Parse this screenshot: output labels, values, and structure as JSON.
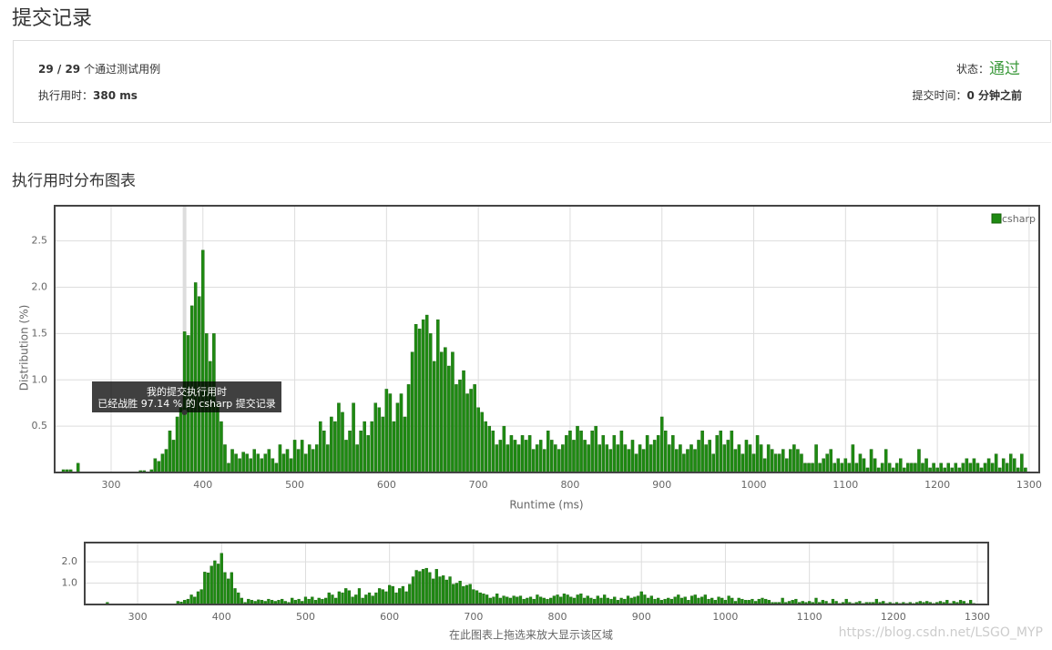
{
  "header": {
    "title": "提交记录",
    "passed": "29 / 29",
    "passed_label": "个通过测试用例",
    "runtime_label": "执行用时：",
    "runtime": "380 ms",
    "status_label": "状态：",
    "status": "通过",
    "time_label": "提交时间：",
    "time": "0 分钟之前"
  },
  "section_title": "执行用时分布图表",
  "chart_data": {
    "type": "bar",
    "x_label": "Runtime (ms)",
    "y_label": "Distribution (%)",
    "legend": "top-right",
    "grid": true,
    "series": [
      {
        "name": "csharp",
        "color": "#1e8a12",
        "x": [
          248,
          252,
          256,
          260,
          264,
          268,
          272,
          276,
          280,
          284,
          288,
          292,
          296,
          300,
          304,
          308,
          312,
          316,
          320,
          324,
          328,
          332,
          336,
          340,
          344,
          348,
          352,
          356,
          360,
          364,
          368,
          372,
          376,
          380,
          384,
          388,
          392,
          396,
          400,
          404,
          408,
          412,
          416,
          420,
          424,
          428,
          432,
          436,
          440,
          444,
          448,
          452,
          456,
          460,
          464,
          468,
          472,
          476,
          480,
          484,
          488,
          492,
          496,
          500,
          504,
          508,
          512,
          516,
          520,
          524,
          528,
          532,
          536,
          540,
          544,
          548,
          552,
          556,
          560,
          564,
          568,
          572,
          576,
          580,
          584,
          588,
          592,
          596,
          600,
          604,
          608,
          612,
          616,
          620,
          624,
          628,
          632,
          636,
          640,
          644,
          648,
          652,
          656,
          660,
          664,
          668,
          672,
          676,
          680,
          684,
          688,
          692,
          696,
          700,
          704,
          708,
          712,
          716,
          720,
          724,
          728,
          732,
          736,
          740,
          744,
          748,
          752,
          756,
          760,
          764,
          768,
          772,
          776,
          780,
          784,
          788,
          792,
          796,
          800,
          804,
          808,
          812,
          816,
          820,
          824,
          828,
          832,
          836,
          840,
          844,
          848,
          852,
          856,
          860,
          864,
          868,
          872,
          876,
          880,
          884,
          888,
          892,
          896,
          900,
          904,
          908,
          912,
          916,
          920,
          924,
          928,
          932,
          936,
          940,
          944,
          948,
          952,
          956,
          960,
          964,
          968,
          972,
          976,
          980,
          984,
          988,
          992,
          996,
          1000,
          1004,
          1008,
          1012,
          1016,
          1020,
          1024,
          1028,
          1032,
          1036,
          1040,
          1044,
          1048,
          1052,
          1056,
          1060,
          1064,
          1068,
          1072,
          1076,
          1080,
          1084,
          1088,
          1092,
          1096,
          1100,
          1104,
          1108,
          1112,
          1116,
          1120,
          1124,
          1128,
          1132,
          1136,
          1140,
          1144,
          1148,
          1152,
          1156,
          1160,
          1164,
          1168,
          1172,
          1176,
          1180,
          1184,
          1188,
          1192,
          1196,
          1200,
          1204,
          1208,
          1212,
          1216,
          1220,
          1224,
          1228,
          1232,
          1236,
          1240,
          1244,
          1248,
          1252,
          1256,
          1260,
          1264,
          1268,
          1272,
          1276,
          1280,
          1284,
          1288,
          1292,
          1296
        ],
        "values": [
          0.03,
          0.03,
          0.03,
          0,
          0.1,
          0,
          0,
          0,
          0,
          0,
          0,
          0,
          0,
          0,
          0,
          0,
          0,
          0,
          0,
          0,
          0,
          0.02,
          0.02,
          0,
          0.03,
          0.15,
          0.12,
          0.2,
          0.25,
          0.45,
          0.35,
          0.6,
          0.7,
          1.52,
          1.48,
          1.8,
          2.05,
          1.9,
          2.4,
          1.5,
          1.2,
          1.5,
          0.75,
          0.55,
          0.3,
          0.1,
          0.25,
          0.2,
          0.15,
          0.22,
          0.2,
          0.15,
          0.25,
          0.2,
          0.15,
          0.2,
          0.25,
          0.15,
          0.1,
          0.3,
          0.2,
          0.25,
          0.15,
          0.35,
          0.25,
          0.35,
          0.2,
          0.3,
          0.25,
          0.3,
          0.55,
          0.45,
          0.3,
          0.6,
          0.55,
          0.75,
          0.65,
          0.35,
          0.45,
          0.75,
          0.3,
          0.45,
          0.55,
          0.4,
          0.55,
          0.75,
          0.7,
          0.6,
          0.9,
          0.85,
          0.55,
          0.75,
          0.85,
          0.6,
          0.95,
          1.3,
          1.6,
          1.55,
          1.65,
          1.7,
          1.5,
          1.2,
          1.65,
          1.3,
          1.35,
          1.15,
          1.3,
          0.95,
          1.0,
          1.1,
          0.85,
          0.9,
          0.95,
          0.7,
          0.65,
          0.55,
          0.5,
          0.45,
          0.3,
          0.35,
          0.5,
          0.3,
          0.4,
          0.35,
          0.3,
          0.4,
          0.35,
          0.4,
          0.25,
          0.3,
          0.35,
          0.25,
          0.45,
          0.35,
          0.3,
          0.25,
          0.3,
          0.4,
          0.45,
          0.35,
          0.5,
          0.45,
          0.35,
          0.3,
          0.45,
          0.5,
          0.3,
          0.4,
          0.3,
          0.25,
          0.4,
          0.3,
          0.45,
          0.3,
          0.25,
          0.35,
          0.2,
          0.3,
          0.25,
          0.4,
          0.3,
          0.35,
          0.4,
          0.6,
          0.45,
          0.3,
          0.4,
          0.25,
          0.3,
          0.2,
          0.25,
          0.3,
          0.25,
          0.35,
          0.45,
          0.3,
          0.35,
          0.2,
          0.4,
          0.45,
          0.3,
          0.35,
          0.45,
          0.25,
          0.3,
          0.2,
          0.35,
          0.3,
          0.2,
          0.4,
          0.3,
          0.15,
          0.3,
          0.25,
          0.2,
          0.2,
          0.25,
          0.15,
          0.25,
          0.3,
          0.25,
          0.2,
          0.1,
          0.1,
          0.1,
          0.3,
          0.1,
          0.15,
          0.2,
          0.25,
          0.1,
          0.15,
          0.1,
          0.15,
          0.1,
          0.3,
          0.1,
          0.2,
          0.15,
          0.05,
          0.25,
          0.15,
          0.05,
          0.1,
          0.25,
          0.1,
          0.05,
          0.1,
          0.15,
          0.05,
          0.1,
          0.1,
          0.1,
          0.25,
          0.1,
          0.15,
          0.05,
          0.1,
          0.05,
          0.1,
          0.05,
          0.1,
          0.05,
          0.1,
          0.05,
          0.1,
          0.15,
          0.1,
          0.15,
          0.1,
          0.05,
          0.1,
          0.15,
          0.1,
          0.2,
          0.05,
          0.15,
          0.1,
          0.2,
          0.15,
          0.05,
          0.2,
          0.05
        ]
      }
    ],
    "xlim": [
      238.5,
      1311
    ],
    "xticks": [
      300,
      400,
      500,
      600,
      700,
      800,
      900,
      1000,
      1100,
      1200,
      1300
    ],
    "ylim": [
      0,
      2.88
    ],
    "yticks": [
      0.5,
      {
        "value": 1.0,
        "label": "1.0"
      },
      1.5,
      {
        "value": 2.0,
        "label": "2.0"
      },
      2.5
    ],
    "highlight_x": 380,
    "tooltip": [
      "我的提交执行用时",
      "已经战胜 97.14 % 的 csharp 提交记录"
    ],
    "navigator": {
      "xlim": [
        237,
        1313
      ],
      "ylim": [
        0,
        2.9
      ],
      "yticks": [
        {
          "value": 1.0,
          "label": "1.0"
        },
        {
          "value": 2.0,
          "label": "2.0"
        }
      ],
      "caption": "在此图表上拖选来放大显示该区域"
    }
  },
  "watermark": "https://blog.csdn.net/LSGO_MYP"
}
